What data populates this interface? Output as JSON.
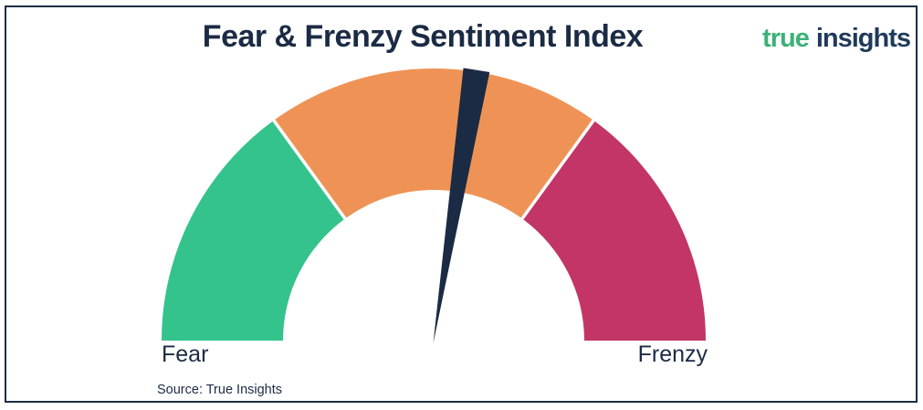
{
  "header": {
    "title": "Fear & Frenzy Sentiment Index",
    "logo": {
      "word1": "true",
      "word2": "insights"
    }
  },
  "colors": {
    "navy": "#1b2b44",
    "frame": "#1d2e44",
    "logo_green": "#3cb179",
    "logo_navy": "#1f3a5a"
  },
  "chart_data": {
    "type": "gauge",
    "title": "Fear & Frenzy Sentiment Index",
    "min": 0,
    "max": 100,
    "start_label": "Fear",
    "end_label": "Frenzy",
    "segments": [
      {
        "name": "fear-zone",
        "from": 0,
        "to": 30,
        "color": "#34c38c"
      },
      {
        "name": "neutral-zone",
        "from": 30,
        "to": 70,
        "color": "#ee9355"
      },
      {
        "name": "frenzy-zone",
        "from": 70,
        "to": 100,
        "color": "#c23566"
      }
    ],
    "needle": {
      "value": 55,
      "color": "#1b2b44"
    },
    "legend": false,
    "grid": false
  },
  "footer": {
    "source": "Source: True Insights"
  }
}
